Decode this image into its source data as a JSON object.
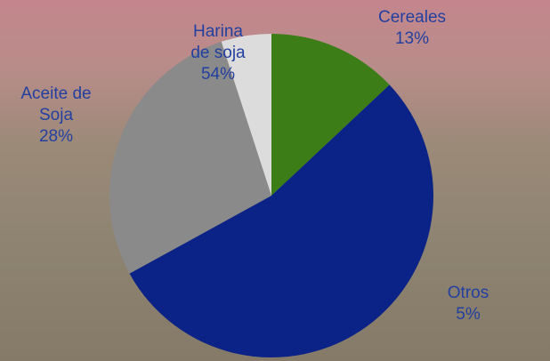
{
  "chart_data": {
    "type": "pie",
    "categories": [
      "Cereales",
      "Harina de soja",
      "Aceite de Soja",
      "Otros"
    ],
    "values": [
      13,
      54,
      28,
      5
    ],
    "value_labels": [
      "13%",
      "54%",
      "28%",
      "5%"
    ],
    "colors": [
      "#3d7d18",
      "#0b2386",
      "#8a8a8a",
      "#dcdcdc"
    ]
  }
}
